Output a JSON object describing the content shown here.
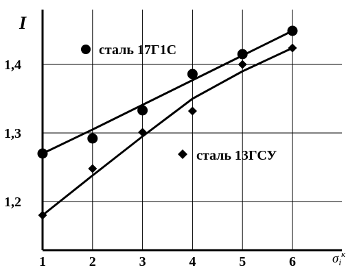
{
  "chart_data": {
    "type": "scatter",
    "ylabel": "I",
    "xlabel": "σ",
    "xlabel_sub": "i",
    "xlabel_sup": "к",
    "xlim": [
      1,
      6
    ],
    "ylim": [
      1.18,
      1.48
    ],
    "x_ticks": [
      1,
      2,
      3,
      4,
      5,
      6
    ],
    "y_ticks": [
      {
        "value": 1.2,
        "label": "1,2"
      },
      {
        "value": 1.3,
        "label": "1,3"
      },
      {
        "value": 1.4,
        "label": "1,4"
      }
    ],
    "grid": true,
    "series": [
      {
        "name": "сталь 17Г1С",
        "marker": "circle",
        "color": "#000000",
        "points": [
          {
            "x": 1,
            "y": 1.27
          },
          {
            "x": 2,
            "y": 1.292
          },
          {
            "x": 3,
            "y": 1.333
          },
          {
            "x": 4,
            "y": 1.386
          },
          {
            "x": 5,
            "y": 1.415
          },
          {
            "x": 6,
            "y": 1.449
          }
        ],
        "fit": [
          {
            "x": 1,
            "y": 1.27
          },
          {
            "x": 2,
            "y": 1.305
          },
          {
            "x": 3,
            "y": 1.341
          },
          {
            "x": 4,
            "y": 1.377
          },
          {
            "x": 5,
            "y": 1.413
          },
          {
            "x": 6,
            "y": 1.449
          }
        ]
      },
      {
        "name": "сталь 13ГСУ",
        "marker": "diamond",
        "color": "#000000",
        "points": [
          {
            "x": 1,
            "y": 1.18
          },
          {
            "x": 2,
            "y": 1.248
          },
          {
            "x": 3,
            "y": 1.301
          },
          {
            "x": 4,
            "y": 1.332
          },
          {
            "x": 5,
            "y": 1.4
          },
          {
            "x": 6,
            "y": 1.424
          }
        ],
        "fit": [
          {
            "x": 1,
            "y": 1.18
          },
          {
            "x": 2,
            "y": 1.238
          },
          {
            "x": 3,
            "y": 1.295
          },
          {
            "x": 4,
            "y": 1.35
          },
          {
            "x": 5,
            "y": 1.39
          },
          {
            "x": 6,
            "y": 1.424
          }
        ]
      }
    ]
  }
}
